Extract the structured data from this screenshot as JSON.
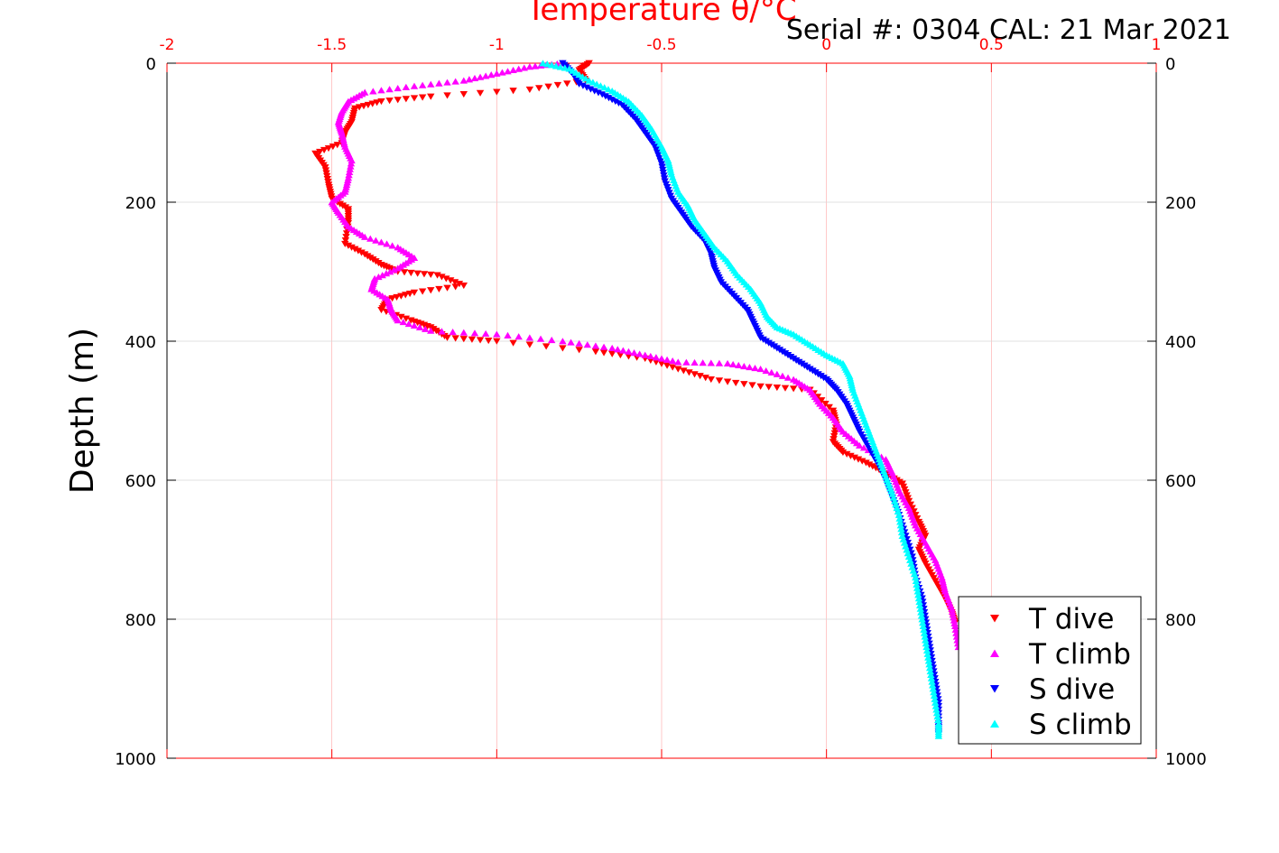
{
  "chart_data": {
    "type": "scatter",
    "title": "Serial #: 0304  CAL: 21 Mar 2021",
    "xlabel": "Temperature θ/°C",
    "ylabel": "Depth (m)",
    "xlim": [
      -2,
      1
    ],
    "ylim": [
      0,
      1000
    ],
    "y_reversed": true,
    "x_ticks": [
      "-2",
      "-1.5",
      "-1",
      "-0.5",
      "0",
      "0.5",
      "1"
    ],
    "y_ticks": [
      "0",
      "200",
      "400",
      "600",
      "800",
      "1000"
    ],
    "grid": true,
    "legend_position": "bottom-right",
    "series": [
      {
        "name": "T dive",
        "color": "#ff0000",
        "marker": "triangle-down",
        "points": [
          [
            -0.72,
            0
          ],
          [
            -0.75,
            10
          ],
          [
            -0.73,
            25
          ],
          [
            -0.9,
            38
          ],
          [
            -1.2,
            48
          ],
          [
            -1.35,
            55
          ],
          [
            -1.43,
            65
          ],
          [
            -1.44,
            85
          ],
          [
            -1.46,
            100
          ],
          [
            -1.47,
            115
          ],
          [
            -1.55,
            130
          ],
          [
            -1.52,
            150
          ],
          [
            -1.51,
            175
          ],
          [
            -1.5,
            195
          ],
          [
            -1.45,
            210
          ],
          [
            -1.45,
            230
          ],
          [
            -1.46,
            260
          ],
          [
            -1.4,
            275
          ],
          [
            -1.35,
            290
          ],
          [
            -1.3,
            300
          ],
          [
            -1.18,
            305
          ],
          [
            -1.1,
            320
          ],
          [
            -1.25,
            330
          ],
          [
            -1.33,
            340
          ],
          [
            -1.35,
            355
          ],
          [
            -1.26,
            370
          ],
          [
            -1.2,
            380
          ],
          [
            -1.15,
            395
          ],
          [
            -1.0,
            400
          ],
          [
            -0.7,
            415
          ],
          [
            -0.55,
            425
          ],
          [
            -0.45,
            440
          ],
          [
            -0.35,
            455
          ],
          [
            -0.2,
            465
          ],
          [
            -0.05,
            470
          ],
          [
            0.02,
            500
          ],
          [
            0.03,
            520
          ],
          [
            0.02,
            545
          ],
          [
            0.05,
            560
          ],
          [
            0.12,
            575
          ],
          [
            0.18,
            590
          ],
          [
            0.23,
            605
          ],
          [
            0.25,
            630
          ],
          [
            0.28,
            660
          ],
          [
            0.3,
            680
          ],
          [
            0.28,
            700
          ],
          [
            0.3,
            720
          ],
          [
            0.33,
            745
          ],
          [
            0.36,
            770
          ],
          [
            0.38,
            790
          ],
          [
            0.39,
            805
          ]
        ]
      },
      {
        "name": "T climb",
        "color": "#ff00ff",
        "marker": "triangle-up",
        "points": [
          [
            -0.8,
            0
          ],
          [
            -0.9,
            5
          ],
          [
            -1.0,
            15
          ],
          [
            -1.1,
            25
          ],
          [
            -1.25,
            33
          ],
          [
            -1.4,
            42
          ],
          [
            -1.45,
            55
          ],
          [
            -1.47,
            70
          ],
          [
            -1.48,
            85
          ],
          [
            -1.47,
            100
          ],
          [
            -1.46,
            120
          ],
          [
            -1.44,
            140
          ],
          [
            -1.45,
            165
          ],
          [
            -1.46,
            185
          ],
          [
            -1.5,
            200
          ],
          [
            -1.48,
            215
          ],
          [
            -1.45,
            235
          ],
          [
            -1.4,
            250
          ],
          [
            -1.3,
            265
          ],
          [
            -1.25,
            280
          ],
          [
            -1.3,
            295
          ],
          [
            -1.37,
            310
          ],
          [
            -1.38,
            325
          ],
          [
            -1.33,
            340
          ],
          [
            -1.32,
            355
          ],
          [
            -1.3,
            370
          ],
          [
            -1.2,
            385
          ],
          [
            -1.0,
            390
          ],
          [
            -0.8,
            400
          ],
          [
            -0.65,
            410
          ],
          [
            -0.55,
            420
          ],
          [
            -0.45,
            430
          ],
          [
            -0.3,
            432
          ],
          [
            -0.2,
            440
          ],
          [
            -0.1,
            455
          ],
          [
            -0.05,
            470
          ],
          [
            -0.02,
            490
          ],
          [
            0.02,
            510
          ],
          [
            0.05,
            530
          ],
          [
            0.1,
            550
          ],
          [
            0.18,
            570
          ],
          [
            0.2,
            590
          ],
          [
            0.22,
            615
          ],
          [
            0.25,
            640
          ],
          [
            0.27,
            665
          ],
          [
            0.3,
            690
          ],
          [
            0.33,
            715
          ],
          [
            0.35,
            740
          ],
          [
            0.36,
            760
          ],
          [
            0.38,
            785
          ],
          [
            0.39,
            810
          ],
          [
            0.4,
            840
          ]
        ]
      },
      {
        "name": "S dive",
        "color": "#0000ff",
        "marker": "triangle-down",
        "points": [
          [
            -0.8,
            0
          ],
          [
            -0.77,
            15
          ],
          [
            -0.75,
            30
          ],
          [
            -0.68,
            45
          ],
          [
            -0.62,
            60
          ],
          [
            -0.58,
            80
          ],
          [
            -0.55,
            100
          ],
          [
            -0.52,
            120
          ],
          [
            -0.5,
            145
          ],
          [
            -0.49,
            170
          ],
          [
            -0.47,
            195
          ],
          [
            -0.44,
            215
          ],
          [
            -0.41,
            235
          ],
          [
            -0.37,
            255
          ],
          [
            -0.35,
            275
          ],
          [
            -0.34,
            295
          ],
          [
            -0.32,
            315
          ],
          [
            -0.28,
            335
          ],
          [
            -0.24,
            355
          ],
          [
            -0.22,
            375
          ],
          [
            -0.2,
            395
          ],
          [
            -0.15,
            410
          ],
          [
            -0.1,
            425
          ],
          [
            -0.05,
            440
          ],
          [
            0.0,
            455
          ],
          [
            0.03,
            470
          ],
          [
            0.06,
            490
          ],
          [
            0.08,
            510
          ],
          [
            0.1,
            530
          ],
          [
            0.13,
            555
          ],
          [
            0.16,
            580
          ],
          [
            0.18,
            600
          ],
          [
            0.2,
            625
          ],
          [
            0.22,
            650
          ],
          [
            0.24,
            680
          ],
          [
            0.26,
            710
          ],
          [
            0.27,
            740
          ],
          [
            0.29,
            770
          ],
          [
            0.3,
            800
          ],
          [
            0.31,
            830
          ],
          [
            0.32,
            860
          ],
          [
            0.33,
            890
          ],
          [
            0.34,
            920
          ],
          [
            0.34,
            950
          ],
          [
            0.34,
            965
          ]
        ]
      },
      {
        "name": "S climb",
        "color": "#00ffff",
        "marker": "triangle-up",
        "points": [
          [
            -0.86,
            0
          ],
          [
            -0.78,
            8
          ],
          [
            -0.72,
            25
          ],
          [
            -0.65,
            40
          ],
          [
            -0.6,
            55
          ],
          [
            -0.56,
            75
          ],
          [
            -0.53,
            95
          ],
          [
            -0.5,
            120
          ],
          [
            -0.48,
            140
          ],
          [
            -0.47,
            160
          ],
          [
            -0.45,
            185
          ],
          [
            -0.42,
            205
          ],
          [
            -0.4,
            225
          ],
          [
            -0.37,
            245
          ],
          [
            -0.34,
            265
          ],
          [
            -0.3,
            285
          ],
          [
            -0.27,
            305
          ],
          [
            -0.23,
            325
          ],
          [
            -0.2,
            345
          ],
          [
            -0.18,
            365
          ],
          [
            -0.15,
            380
          ],
          [
            -0.1,
            390
          ],
          [
            -0.05,
            405
          ],
          [
            0.0,
            420
          ],
          [
            0.05,
            432
          ],
          [
            0.07,
            450
          ],
          [
            0.08,
            470
          ],
          [
            0.1,
            495
          ],
          [
            0.12,
            520
          ],
          [
            0.14,
            545
          ],
          [
            0.16,
            570
          ],
          [
            0.18,
            595
          ],
          [
            0.2,
            620
          ],
          [
            0.22,
            650
          ],
          [
            0.23,
            680
          ],
          [
            0.25,
            710
          ],
          [
            0.27,
            740
          ],
          [
            0.28,
            770
          ],
          [
            0.29,
            800
          ],
          [
            0.3,
            830
          ],
          [
            0.31,
            860
          ],
          [
            0.32,
            890
          ],
          [
            0.33,
            920
          ],
          [
            0.34,
            950
          ],
          [
            0.34,
            968
          ]
        ]
      }
    ]
  }
}
